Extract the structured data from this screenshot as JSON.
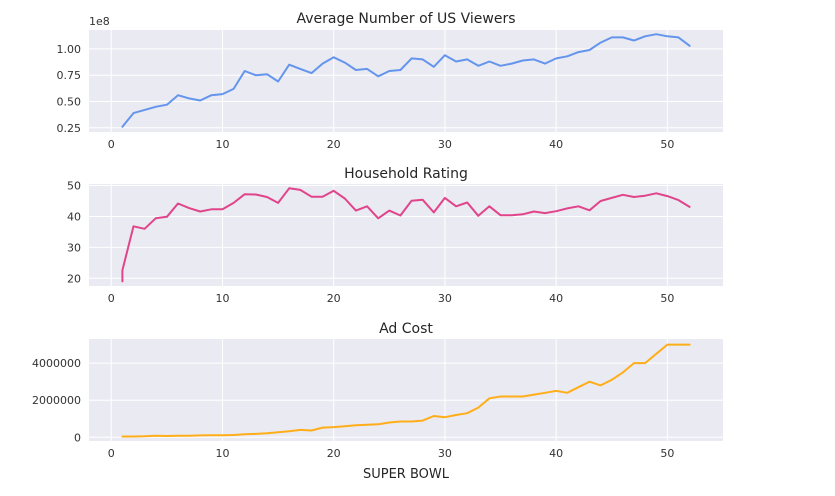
{
  "chart_data": [
    {
      "type": "line",
      "title": "Average Number of US Viewers",
      "xlabel": "",
      "ylabel": "",
      "offset_label": "1e8",
      "xlim": [
        -2,
        55
      ],
      "ylim": [
        0.21,
        1.18
      ],
      "xticks": [
        0,
        10,
        20,
        30,
        40,
        50
      ],
      "yticks": [
        0.25,
        0.5,
        0.75,
        1.0
      ],
      "ytick_labels": [
        "0.25",
        "0.50",
        "0.75",
        "1.00"
      ],
      "grid": true,
      "color": "#6495ED",
      "series": [
        {
          "x": [
            1,
            2,
            3,
            4,
            5,
            6,
            7,
            8,
            9,
            10,
            11,
            12,
            13,
            14,
            15,
            16,
            17,
            18,
            19,
            20,
            21,
            22,
            23,
            24,
            25,
            26,
            27,
            28,
            29,
            30,
            31,
            32,
            33,
            34,
            35,
            36,
            37,
            38,
            39,
            40,
            41,
            42,
            43,
            44,
            45,
            46,
            47,
            48,
            49,
            50,
            51,
            52
          ],
          "values": [
            0.26,
            0.39,
            0.42,
            0.45,
            0.47,
            0.56,
            0.53,
            0.51,
            0.56,
            0.57,
            0.62,
            0.79,
            0.75,
            0.76,
            0.69,
            0.85,
            0.81,
            0.77,
            0.86,
            0.92,
            0.87,
            0.8,
            0.81,
            0.74,
            0.79,
            0.8,
            0.91,
            0.9,
            0.83,
            0.94,
            0.88,
            0.9,
            0.84,
            0.88,
            0.84,
            0.86,
            0.89,
            0.9,
            0.86,
            0.91,
            0.93,
            0.97,
            0.99,
            1.06,
            1.11,
            1.11,
            1.08,
            1.12,
            1.14,
            1.12,
            1.11,
            1.03
          ]
        }
      ]
    },
    {
      "type": "line",
      "title": "Household Rating",
      "xlabel": "",
      "ylabel": "",
      "xlim": [
        -2,
        55
      ],
      "ylim": [
        17.5,
        50.5
      ],
      "xticks": [
        0,
        10,
        20,
        30,
        40,
        50
      ],
      "yticks": [
        20,
        30,
        40,
        50
      ],
      "ytick_labels": [
        "20",
        "30",
        "40",
        "50"
      ],
      "grid": true,
      "color": "#E0448A",
      "series": [
        {
          "x": [
            1,
            1,
            2,
            3,
            4,
            5,
            6,
            7,
            8,
            9,
            10,
            11,
            12,
            13,
            14,
            15,
            16,
            17,
            18,
            19,
            20,
            21,
            22,
            23,
            24,
            25,
            26,
            27,
            28,
            29,
            30,
            31,
            32,
            33,
            34,
            35,
            36,
            37,
            38,
            39,
            40,
            41,
            42,
            43,
            44,
            45,
            46,
            47,
            48,
            49,
            50,
            51,
            52
          ],
          "values": [
            19,
            22.6,
            36.8,
            36.0,
            39.4,
            39.9,
            44.2,
            42.7,
            41.6,
            42.3,
            42.3,
            44.4,
            47.2,
            47.1,
            46.3,
            44.4,
            49.1,
            48.6,
            46.4,
            46.4,
            48.3,
            45.8,
            41.9,
            43.3,
            39.4,
            41.9,
            40.3,
            45.1,
            45.4,
            41.3,
            46.0,
            43.3,
            44.5,
            40.2,
            43.3,
            40.4,
            40.4,
            40.7,
            41.6,
            41.1,
            41.7,
            42.6,
            43.3,
            42.0,
            45.0,
            46.0,
            47.0,
            46.3,
            46.7,
            47.5,
            46.6,
            45.3,
            43.1
          ]
        }
      ]
    },
    {
      "type": "line",
      "title": "Ad Cost",
      "xlabel": "SUPER BOWL",
      "ylabel": "",
      "xlim": [
        -2,
        55
      ],
      "ylim": [
        -200000,
        5300000
      ],
      "xticks": [
        0,
        10,
        20,
        30,
        40,
        50
      ],
      "yticks": [
        0,
        2000000,
        4000000
      ],
      "ytick_labels": [
        "0",
        "2000000",
        "4000000"
      ],
      "grid": true,
      "color": "#FFAE1A",
      "series": [
        {
          "x": [
            1,
            2,
            3,
            4,
            5,
            6,
            7,
            8,
            9,
            10,
            11,
            12,
            13,
            14,
            15,
            16,
            17,
            18,
            19,
            20,
            21,
            22,
            23,
            24,
            25,
            26,
            27,
            28,
            29,
            30,
            31,
            32,
            33,
            34,
            35,
            36,
            37,
            38,
            39,
            40,
            41,
            42,
            43,
            44,
            45,
            46,
            47,
            48,
            49,
            50,
            51,
            52
          ],
          "values": [
            42000,
            40000,
            54000,
            78000,
            72000,
            86000,
            88000,
            103000,
            107000,
            110000,
            125000,
            162000,
            185000,
            222000,
            275000,
            324000,
            400000,
            368000,
            525000,
            550000,
            600000,
            645000,
            675000,
            700000,
            800000,
            850000,
            850000,
            900000,
            1150000,
            1085000,
            1200000,
            1300000,
            1600000,
            2100000,
            2200000,
            2200000,
            2200000,
            2300000,
            2400000,
            2500000,
            2400000,
            2700000,
            3000000,
            2800000,
            3100000,
            3500000,
            4000000,
            4000000,
            4500000,
            5000000,
            5000000,
            5000000
          ]
        }
      ]
    }
  ]
}
